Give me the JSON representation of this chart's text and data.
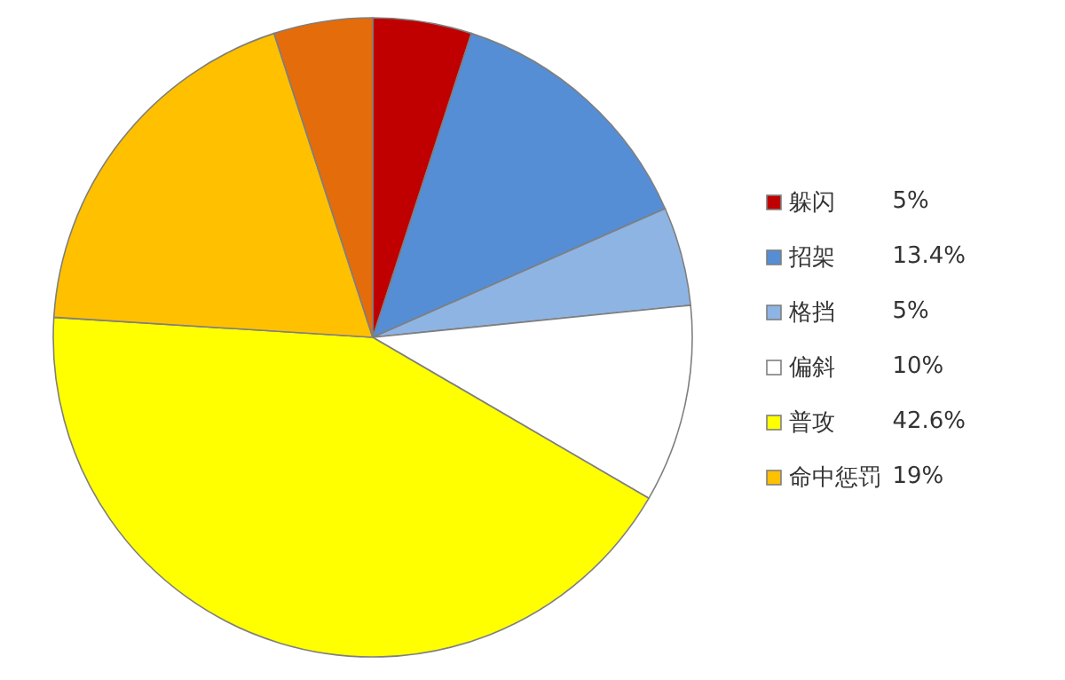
{
  "chart_data": {
    "type": "pie",
    "categories": [
      "躲闪",
      "招架",
      "格挡",
      "偏斜",
      "普攻",
      "命中惩罚",
      null
    ],
    "values": [
      5,
      13.4,
      5,
      10,
      42.6,
      19,
      5
    ],
    "value_labels": [
      "5%",
      "13.4%",
      "5%",
      "10%",
      "42.6%",
      "19%",
      null
    ],
    "colors": [
      "#c00000",
      "#558ed5",
      "#8eb4e3",
      "#ffffff",
      "#ffff00",
      "#ffc000",
      "#e46c0a"
    ],
    "legend": "right"
  }
}
